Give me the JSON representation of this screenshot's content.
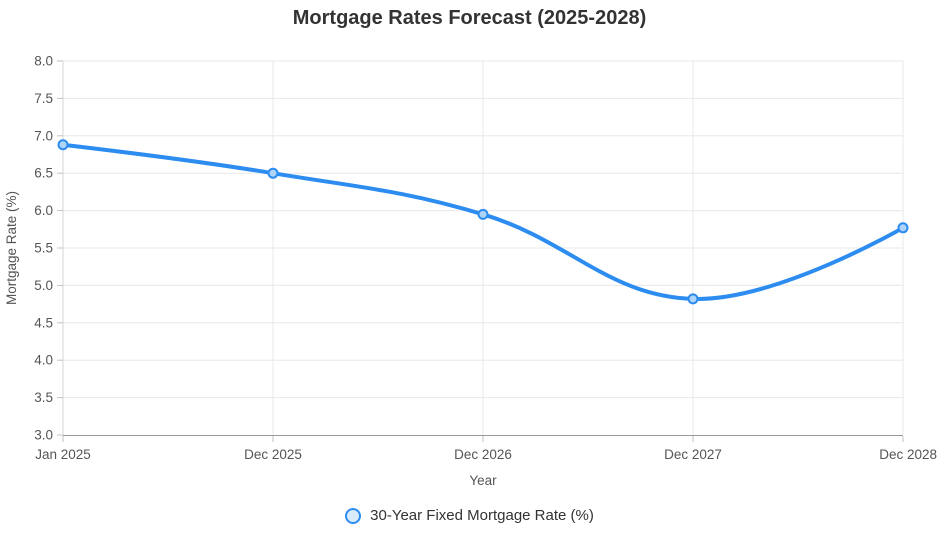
{
  "chart_data": {
    "type": "line",
    "title": "Mortgage Rates Forecast (2025-2028)",
    "xlabel": "Year",
    "ylabel": "Mortgage Rate (%)",
    "categories": [
      "Jan 2025",
      "Dec 2025",
      "Dec 2026",
      "Dec 2027",
      "Dec 2028"
    ],
    "series": [
      {
        "name": "30-Year Fixed Mortgage Rate (%)",
        "values": [
          6.88,
          6.5,
          5.95,
          4.82,
          5.77
        ],
        "color": "#2d8cf0",
        "point_fill": "#aed4f7"
      }
    ],
    "ylim": [
      3.0,
      8.0
    ],
    "ytick_step": 0.5,
    "ytick_decimals": 1,
    "grid": true,
    "legend_position": "bottom",
    "line_style": "smooth",
    "style": {
      "background": "#ffffff",
      "grid_color": "#e8e8e8",
      "axis_line_color": "#d4d4d4",
      "x_axis_border_color": "#999999",
      "tick_mark_color": "#c0c0c0",
      "tick_label_color": "#555555",
      "axis_title_color": "#555555",
      "title_color": "#333333",
      "legend_text_color": "#333333"
    }
  }
}
